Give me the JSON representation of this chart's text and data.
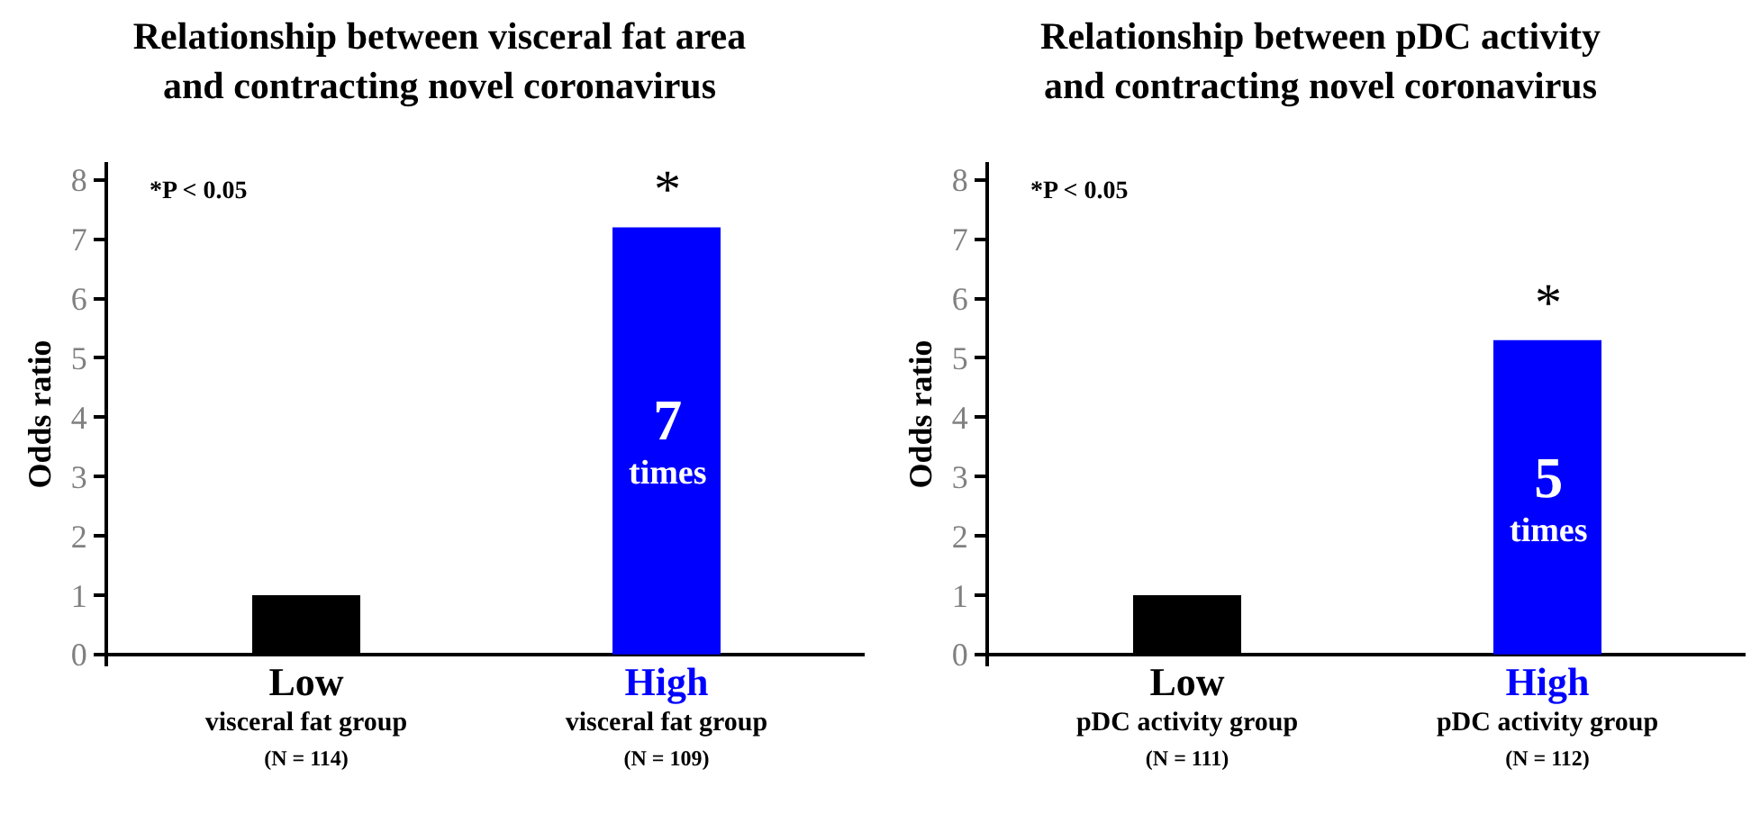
{
  "chart_data": [
    {
      "type": "bar",
      "title": "Relationship between visceral fat area\nand contracting novel coronavirus",
      "ylabel": "Odds ratio",
      "categories": [
        "Low\nvisceral fat group\n(N = 114)",
        "High\nvisceral fat group\n(N = 109)"
      ],
      "values": [
        1,
        7.2
      ],
      "colors": [
        "#000000",
        "#0000ff"
      ],
      "ylim": [
        -0.2,
        8.3
      ],
      "yticks": [
        0,
        1,
        2,
        3,
        4,
        5,
        6,
        7,
        8
      ],
      "grid": false,
      "annotations": [
        "*P < 0.05",
        {
          "text": "*",
          "x": "High\nvisceral fat group\n(N = 109)",
          "y": 7.2
        },
        "7\ntimes"
      ]
    },
    {
      "type": "bar",
      "title": "Relationship between pDC activity\nand contracting novel coronavirus",
      "ylabel": "Odds ratio",
      "categories": [
        "Low\npDC activity group\n(N = 111)",
        "High\npDC activity group\n(N = 112)"
      ],
      "values": [
        1,
        5.3
      ],
      "colors": [
        "#000000",
        "#0000ff"
      ],
      "ylim": [
        -0.2,
        8.3
      ],
      "yticks": [
        0,
        1,
        2,
        3,
        4,
        5,
        6,
        7,
        8
      ],
      "grid": false,
      "annotations": [
        "*P < 0.05",
        {
          "text": "*",
          "x": "High\npDC activity group\n(N = 112)",
          "y": 5.3
        },
        "5\ntimes"
      ]
    }
  ]
}
